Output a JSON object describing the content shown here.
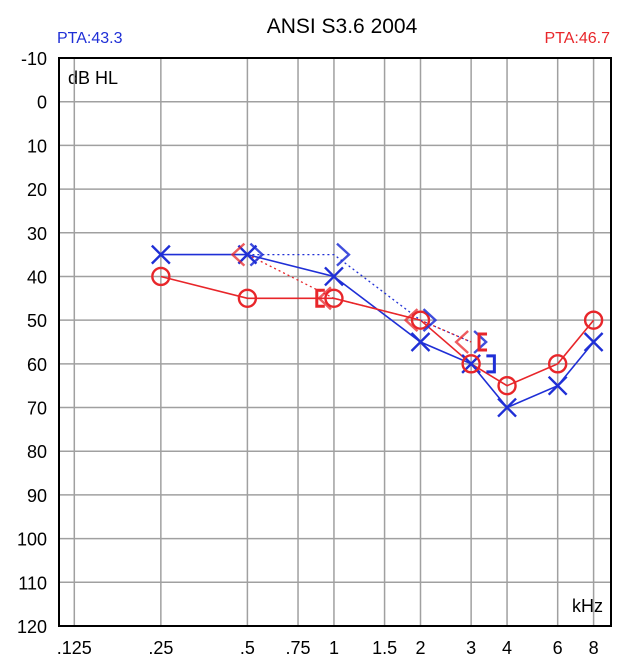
{
  "chart_data": {
    "type": "line",
    "title": "ANSI S3.6 2004",
    "pta_left": "PTA:43.3",
    "pta_right": "PTA:46.7",
    "ylabel": "dB HL",
    "xlabel": "kHz",
    "ylim": [
      -10,
      120
    ],
    "y_ticks": [
      "-10",
      "0",
      "10",
      "20",
      "30",
      "40",
      "50",
      "60",
      "70",
      "80",
      "90",
      "100",
      "110",
      "120"
    ],
    "x_ticks": [
      {
        "label": ".125",
        "khz": 0.125
      },
      {
        "label": ".25",
        "khz": 0.25
      },
      {
        "label": ".5",
        "khz": 0.5
      },
      {
        "label": ".75",
        "khz": 0.75
      },
      {
        "label": "1",
        "khz": 1
      },
      {
        "label": "1.5",
        "khz": 1.5
      },
      {
        "label": "2",
        "khz": 2
      },
      {
        "label": "3",
        "khz": 3
      },
      {
        "label": "4",
        "khz": 4
      },
      {
        "label": "6",
        "khz": 6
      },
      {
        "label": "8",
        "khz": 8
      }
    ],
    "colors": {
      "left": "#1f2fd6",
      "right": "#e8262a",
      "grid": "#a0a0a0"
    },
    "series": [
      {
        "ear": "left",
        "symbol": "x",
        "style": "solid",
        "points": [
          [
            0.25,
            35
          ],
          [
            0.5,
            35
          ],
          [
            1,
            40
          ],
          [
            2,
            55
          ],
          [
            3,
            60
          ],
          [
            4,
            70
          ],
          [
            6,
            65
          ],
          [
            8,
            55
          ]
        ]
      },
      {
        "ear": "right",
        "symbol": "o",
        "style": "solid",
        "points": [
          [
            0.25,
            40
          ],
          [
            0.5,
            45
          ],
          [
            1,
            45
          ],
          [
            2,
            50
          ],
          [
            3,
            60
          ],
          [
            4,
            65
          ],
          [
            6,
            60
          ],
          [
            8,
            50
          ]
        ]
      },
      {
        "ear": "left",
        "symbol": "bone-gt",
        "style": "dotted",
        "points": [
          [
            0.5,
            35
          ],
          [
            1,
            35
          ],
          [
            2,
            50
          ],
          [
            3,
            55
          ]
        ]
      },
      {
        "ear": "right",
        "symbol": "bone-lt",
        "style": "dotted",
        "points": [
          [
            0.5,
            35
          ],
          [
            1,
            45
          ],
          [
            2,
            50
          ],
          [
            3,
            55
          ]
        ]
      },
      {
        "ear": "left",
        "symbol": "bracket-right",
        "style": "none",
        "points": [
          [
            3.5,
            60
          ]
        ]
      },
      {
        "ear": "right",
        "symbol": "bracket-left",
        "style": "none",
        "points": [
          [
            0.9,
            45
          ],
          [
            3.3,
            55
          ]
        ]
      }
    ]
  }
}
